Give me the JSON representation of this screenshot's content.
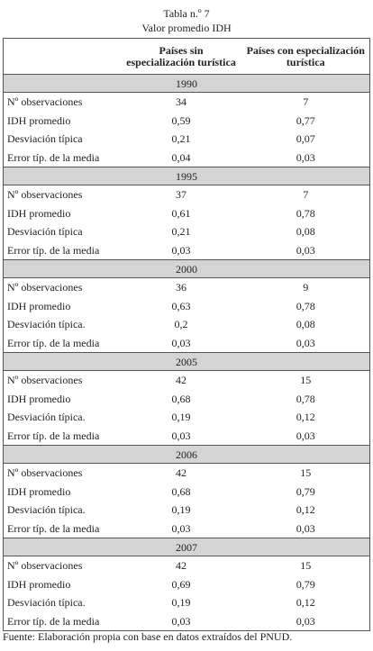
{
  "title": "Tabla n.º 7",
  "subtitle": "Valor promedio IDH",
  "headers": [
    "Países sin especialización turística",
    "Países con especialización turística"
  ],
  "blocks": [
    {
      "year": "1990",
      "rows": [
        [
          "Nº observaciones",
          "34",
          "7"
        ],
        [
          "IDH promedio",
          "0,59",
          "0,77"
        ],
        [
          "Desviación típica",
          "0,21",
          "0,07"
        ],
        [
          "Error típ. de la media",
          "0,04",
          "0,03"
        ]
      ]
    },
    {
      "year": "1995",
      "rows": [
        [
          "Nº observaciones",
          "37",
          "7"
        ],
        [
          "IDH promedio",
          "0,61",
          "0,78"
        ],
        [
          "Desviación típica",
          "0,21",
          "0,08"
        ],
        [
          "Error típ. de la media",
          "0,03",
          "0,03"
        ]
      ]
    },
    {
      "year": "2000",
      "rows": [
        [
          "Nº observaciones",
          "36",
          "9"
        ],
        [
          "IDH promedio",
          "0,63",
          "0,78"
        ],
        [
          "Desviación típica.",
          "0,2",
          "0,08"
        ],
        [
          "Error típ. de la media",
          "0,03",
          "0,03"
        ]
      ]
    },
    {
      "year": "2005",
      "rows": [
        [
          "Nº observaciones",
          "42",
          "15"
        ],
        [
          "IDH promedio",
          "0,68",
          "0,78"
        ],
        [
          "Desviación típica.",
          "0,19",
          "0,12"
        ],
        [
          "Error típ. de la media",
          "0,03",
          "0,03"
        ]
      ]
    },
    {
      "year": "2006",
      "rows": [
        [
          "Nº observaciones",
          "42",
          "15"
        ],
        [
          "IDH promedio",
          "0,68",
          "0,79"
        ],
        [
          "Desviación típica.",
          "0,19",
          "0,12"
        ],
        [
          "Error típ. de la media",
          "0,03",
          "0,03"
        ]
      ]
    },
    {
      "year": "2007",
      "rows": [
        [
          "Nº observaciones",
          "42",
          "15"
        ],
        [
          "IDH promedio",
          "0,69",
          "0,79"
        ],
        [
          "Desviación típica.",
          "0,19",
          "0,12"
        ],
        [
          "Error típ. de la media",
          "0,03",
          "0,03"
        ]
      ]
    }
  ],
  "footnote": "Fuente: Elaboración propia con base en datos extraídos del PNUD."
}
